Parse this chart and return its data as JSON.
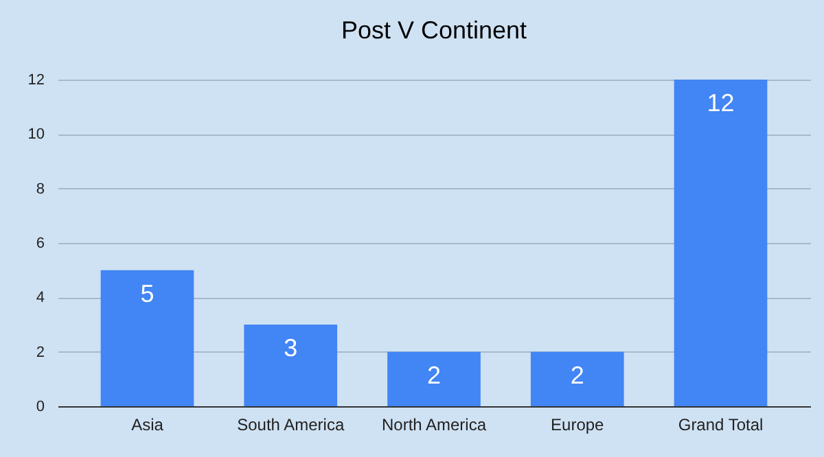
{
  "chart_data": {
    "type": "bar",
    "title": "Post V Continent",
    "categories": [
      "Asia",
      "South America",
      "North America",
      "Europe",
      "Grand Total"
    ],
    "values": [
      5,
      3,
      2,
      2,
      12
    ],
    "color": "#4285f4",
    "ylim": [
      0,
      12
    ],
    "yticks": [
      0,
      2,
      4,
      6,
      8,
      10,
      12
    ],
    "grid": "y",
    "data_labels": true
  }
}
